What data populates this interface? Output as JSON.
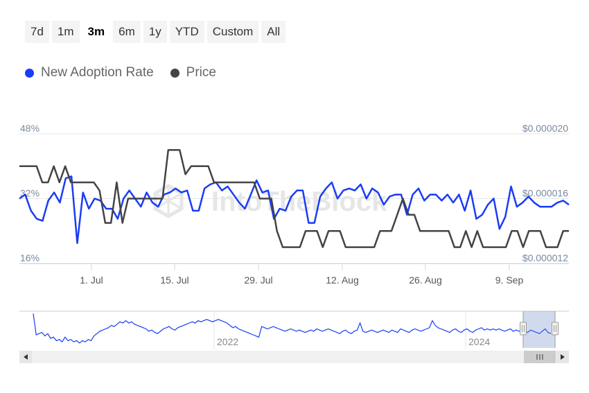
{
  "range_selector": {
    "buttons": [
      "7d",
      "1m",
      "3m",
      "6m",
      "1y",
      "YTD",
      "Custom",
      "All"
    ],
    "selected": "3m"
  },
  "chart_data": {
    "type": "line",
    "x_ticks": [
      "1. Jul",
      "15. Jul",
      "29. Jul",
      "12. Aug",
      "26. Aug",
      "9. Sep"
    ],
    "y_left_ticks": [
      "48%",
      "32%",
      "16%"
    ],
    "y_right_ticks": [
      "$0.000020",
      "$0.000016",
      "$0.000012"
    ],
    "y_left_range": [
      16,
      48
    ],
    "y_right_range": [
      1.2e-05,
      2e-05
    ],
    "grid": true,
    "legend_position": "top-left",
    "series": [
      {
        "name": "New Adoption Rate",
        "color": "#1a3cf5",
        "axis": "left",
        "values": [
          32,
          33,
          29,
          27,
          26.5,
          31.5,
          33.5,
          31,
          37,
          37.5,
          21,
          33.5,
          29.5,
          32,
          31.5,
          29.5,
          29.5,
          27,
          32,
          34,
          32,
          30,
          33.5,
          31,
          30,
          33,
          33.5,
          34.5,
          33.5,
          34,
          29,
          29,
          34.5,
          35.5,
          36,
          34,
          35,
          33,
          31,
          29.5,
          33,
          36.5,
          33.5,
          34,
          27,
          29.5,
          29,
          32.5,
          34,
          34,
          26,
          26,
          32.5,
          34.5,
          36,
          32,
          34,
          34.5,
          34,
          35.5,
          32,
          34.5,
          33.5,
          30.5,
          32.5,
          33,
          33,
          28,
          33,
          34.5,
          31.5,
          33,
          33,
          31.5,
          33,
          31,
          33,
          29,
          34,
          27,
          28,
          30.5,
          32,
          24.5,
          27.5,
          35,
          30,
          31,
          32.5,
          31,
          30,
          30,
          30,
          31,
          31.5,
          30.5
        ]
      },
      {
        "name": "Price",
        "color": "#434348",
        "axis": "right",
        "values": [
          1.8e-05,
          1.8e-05,
          1.8e-05,
          1.8e-05,
          1.7e-05,
          1.7e-05,
          1.8e-05,
          1.7e-05,
          1.8e-05,
          1.7e-05,
          1.7e-05,
          1.7e-05,
          1.7e-05,
          1.7e-05,
          1.65e-05,
          1.45e-05,
          1.45e-05,
          1.7e-05,
          1.45e-05,
          1.6e-05,
          1.6e-05,
          1.6e-05,
          1.6e-05,
          1.6e-05,
          1.6e-05,
          1.6e-05,
          1.9e-05,
          1.9e-05,
          1.9e-05,
          1.75e-05,
          1.8e-05,
          1.8e-05,
          1.8e-05,
          1.8e-05,
          1.7e-05,
          1.7e-05,
          1.7e-05,
          1.7e-05,
          1.7e-05,
          1.7e-05,
          1.7e-05,
          1.7e-05,
          1.6e-05,
          1.6e-05,
          1.6e-05,
          1.4e-05,
          1.3e-05,
          1.3e-05,
          1.3e-05,
          1.3e-05,
          1.4e-05,
          1.4e-05,
          1.4e-05,
          1.3e-05,
          1.4e-05,
          1.4e-05,
          1.4e-05,
          1.3e-05,
          1.3e-05,
          1.3e-05,
          1.3e-05,
          1.3e-05,
          1.3e-05,
          1.4e-05,
          1.4e-05,
          1.4e-05,
          1.5e-05,
          1.6e-05,
          1.5e-05,
          1.5e-05,
          1.4e-05,
          1.4e-05,
          1.4e-05,
          1.4e-05,
          1.4e-05,
          1.4e-05,
          1.3e-05,
          1.3e-05,
          1.4e-05,
          1.3e-05,
          1.4e-05,
          1.3e-05,
          1.3e-05,
          1.3e-05,
          1.3e-05,
          1.3e-05,
          1.4e-05,
          1.4e-05,
          1.3e-05,
          1.4e-05,
          1.4e-05,
          1.4e-05,
          1.3e-05,
          1.3e-05,
          1.3e-05,
          1.4e-05,
          1.4e-05
        ]
      }
    ],
    "navigator": {
      "year_labels": [
        "2022",
        "2024"
      ],
      "values": [
        48,
        30,
        31,
        32,
        29,
        31,
        27,
        28,
        25,
        26,
        24,
        28,
        25,
        26,
        24,
        25,
        23,
        25,
        24,
        26,
        25,
        29,
        31,
        33,
        34,
        35,
        36,
        38,
        37,
        39,
        41,
        40,
        42,
        40,
        41,
        39,
        38,
        37,
        36,
        35,
        33,
        34,
        32,
        31,
        33,
        35,
        36,
        37,
        35,
        34,
        36,
        37,
        38,
        39,
        40,
        41,
        40,
        42,
        41,
        42,
        43,
        42,
        41,
        42,
        43,
        42,
        41,
        40,
        38,
        36,
        37,
        35,
        34,
        33,
        32,
        31,
        30,
        29,
        28,
        37,
        36,
        35,
        36,
        37,
        36,
        35,
        34,
        33,
        34,
        35,
        34,
        33,
        34,
        33,
        32,
        33,
        34,
        33,
        35,
        34,
        33,
        34,
        35,
        34,
        33,
        32,
        31,
        33,
        34,
        32,
        31,
        33,
        34,
        40,
        33,
        32,
        33,
        34,
        33,
        32,
        33,
        34,
        33,
        32,
        34,
        33,
        32,
        35,
        34,
        33,
        32,
        34,
        35,
        34,
        33,
        34,
        35,
        36,
        42,
        38,
        36,
        35,
        34,
        33,
        32,
        34,
        35,
        33,
        32,
        34,
        35,
        33,
        32,
        34,
        35,
        36,
        34,
        35,
        34,
        35,
        34,
        35,
        34,
        33,
        34,
        35,
        33,
        34,
        33,
        34,
        33,
        32,
        34,
        33,
        32,
        31,
        33,
        35,
        32,
        31
      ]
    },
    "watermark": "IntoTheBlock"
  }
}
